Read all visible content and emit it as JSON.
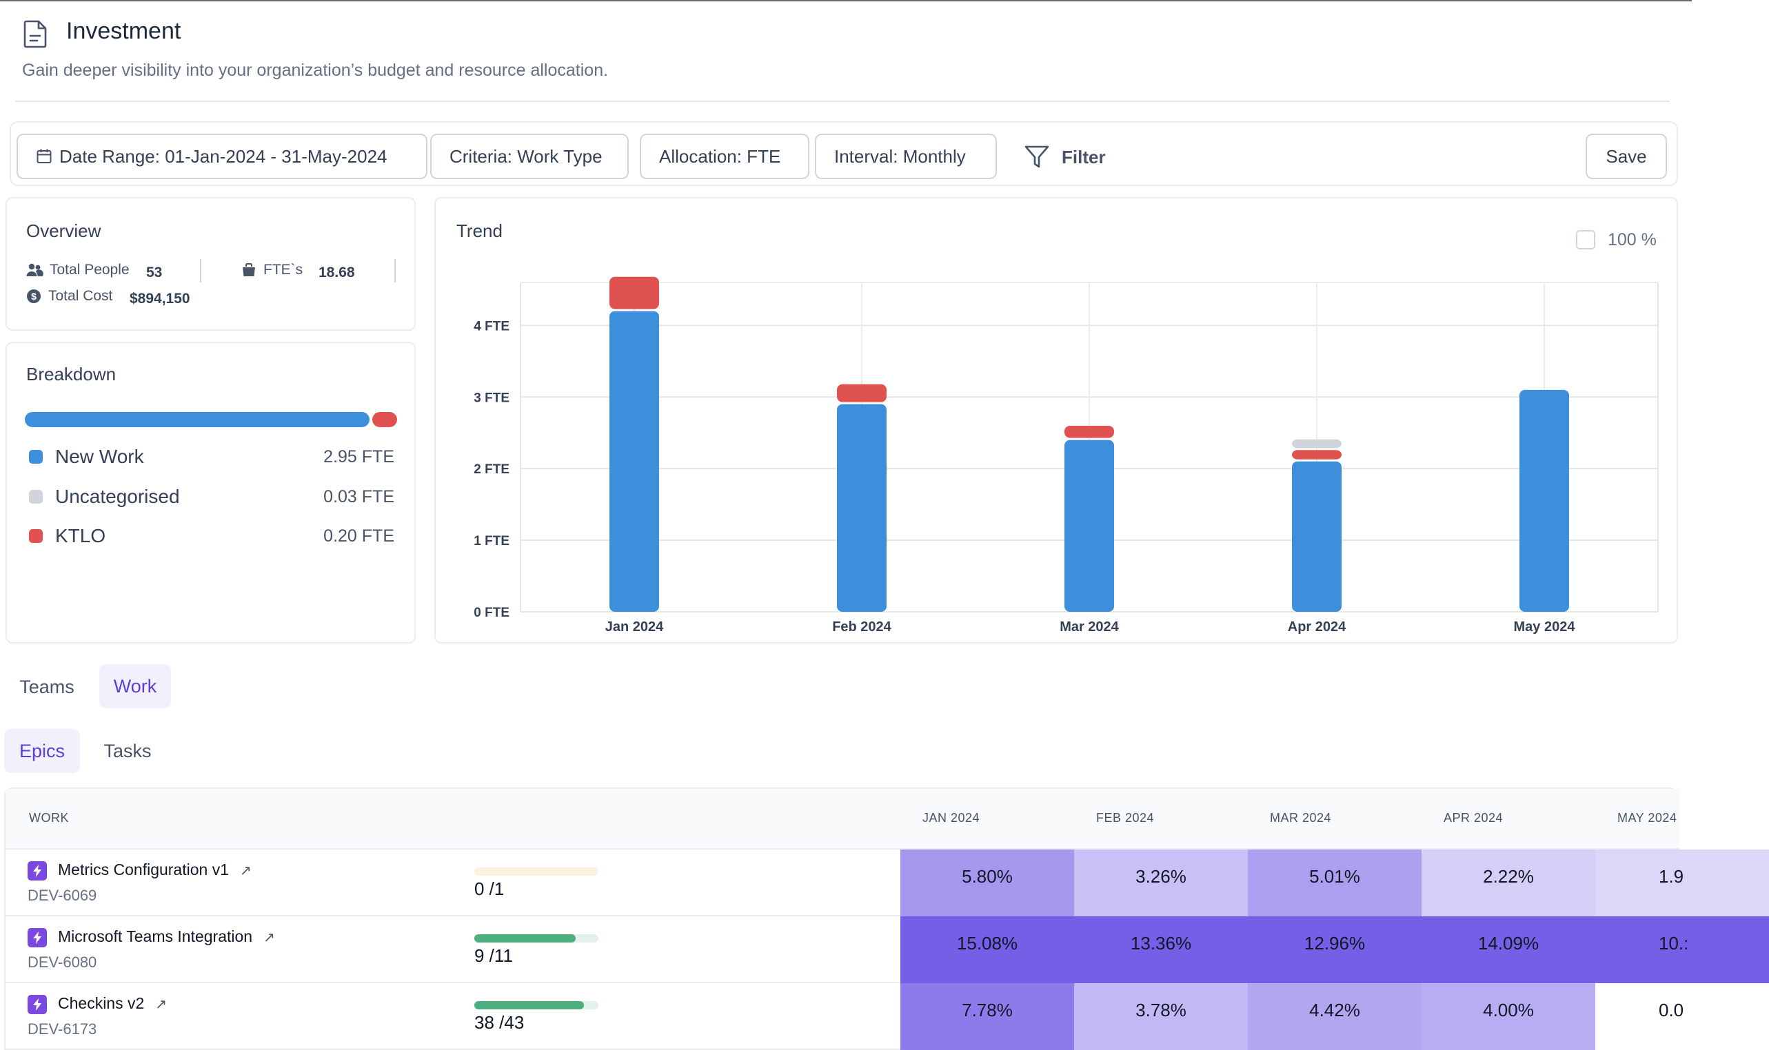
{
  "header": {
    "title": "Investment",
    "subtitle": "Gain deeper visibility into your organization’s budget and resource allocation."
  },
  "toolbar": {
    "date_range": "Date Range: 01-Jan-2024 - 31-May-2024",
    "criteria": "Criteria: Work Type",
    "allocation": "Allocation: FTE",
    "interval": "Interval: Monthly",
    "filter": "Filter",
    "save": "Save"
  },
  "overview": {
    "title": "Overview",
    "total_people_label": "Total People",
    "total_people_value": "53",
    "fte_label": "FTE`s",
    "fte_value": "18.68",
    "total_cost_label": "Total Cost",
    "total_cost_value": "$894,150"
  },
  "breakdown": {
    "title": "Breakdown",
    "items": [
      {
        "label": "New Work",
        "value": "2.95 FTE",
        "color": "#3d8fdb"
      },
      {
        "label": "Uncategorised",
        "value": "0.03 FTE",
        "color": "#d0d5dd"
      },
      {
        "label": "KTLO",
        "value": "0.20 FTE",
        "color": "#e0524f"
      }
    ]
  },
  "trend": {
    "title": "Trend",
    "percent_toggle_label": "100 %"
  },
  "chart_data": {
    "type": "bar",
    "stacked": true,
    "title": "Trend",
    "categories": [
      "Jan 2024",
      "Feb 2024",
      "Mar 2024",
      "Apr 2024",
      "May 2024"
    ],
    "series": [
      {
        "name": "New Work",
        "color": "#3d8fdb",
        "values": [
          4.2,
          2.9,
          2.4,
          2.1,
          3.1
        ]
      },
      {
        "name": "KTLO",
        "color": "#e0524f",
        "values": [
          0.45,
          0.25,
          0.17,
          0.13,
          0.0
        ]
      },
      {
        "name": "Uncategorised",
        "color": "#d0d5dd",
        "values": [
          0.0,
          0.0,
          0.0,
          0.12,
          0.0
        ]
      }
    ],
    "yticks": [
      0,
      1,
      2,
      3,
      4
    ],
    "ytick_labels": [
      "0 FTE",
      "1 FTE",
      "2 FTE",
      "3 FTE",
      "4 FTE"
    ],
    "ylim": [
      0,
      4.6
    ],
    "xlabel": "",
    "ylabel": "",
    "grid": true
  },
  "tabs": {
    "primary": [
      "Teams",
      "Work"
    ],
    "primary_active": "Work",
    "secondary": [
      "Epics",
      "Tasks"
    ],
    "secondary_active": "Epics"
  },
  "table": {
    "headers": {
      "work": "WORK",
      "months": [
        "JAN 2024",
        "FEB 2024",
        "MAR 2024",
        "APR 2024",
        "MAY 2024"
      ]
    },
    "rows": [
      {
        "name": "Metrics Configuration v1",
        "id": "DEV-6069",
        "progress_text": "0 /1",
        "progress": 0.0,
        "progress_color": "#f4c15d",
        "cells": [
          "5.80%",
          "3.26%",
          "5.01%",
          "2.22%",
          "1.9"
        ],
        "cell_colors": [
          "#a596ee",
          "#c9c0f5",
          "#ad9fef",
          "#d5cef7",
          "#dcd6f8"
        ]
      },
      {
        "name": "Microsoft Teams Integration",
        "id": "DEV-6080",
        "progress_text": "9 /11",
        "progress": 0.818,
        "progress_color": "#4caf7d",
        "cells": [
          "15.08%",
          "13.36%",
          "12.96%",
          "14.09%",
          "10.:"
        ],
        "cell_colors": [
          "#745fe6",
          "#745fe6",
          "#745fe6",
          "#745fe6",
          "#745fe6"
        ]
      },
      {
        "name": "Checkins v2",
        "id": "DEV-6173",
        "progress_text": "38 /43",
        "progress": 0.884,
        "progress_color": "#4caf7d",
        "cells": [
          "7.78%",
          "3.78%",
          "4.42%",
          "4.00%",
          "0.0"
        ],
        "cell_colors": [
          "#8f7aeb",
          "#c3b8f4",
          "#b3a6f1",
          "#b8acf2",
          "#ffffff"
        ]
      }
    ]
  }
}
